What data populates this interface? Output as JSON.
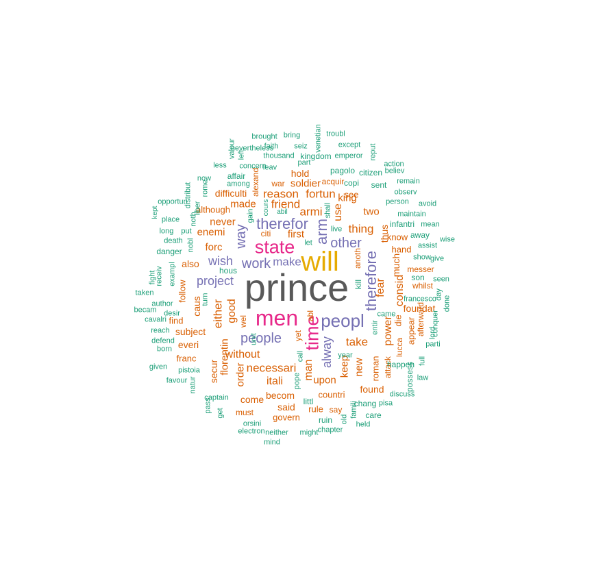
{
  "palette": {
    "grey": "#595959",
    "gold": "#E6AB02",
    "pink": "#E7298A",
    "purple": "#7570B3",
    "orange": "#D95F02",
    "teal": "#1B9E77"
  },
  "words": [
    {
      "text": "prince",
      "c": "grey"
    },
    {
      "text": "will",
      "c": "gold"
    },
    {
      "text": "men",
      "c": "pink"
    },
    {
      "text": "state",
      "c": "pink"
    },
    {
      "text": "time",
      "c": "pink"
    },
    {
      "text": "peopl",
      "c": "purple"
    },
    {
      "text": "arm",
      "c": "purple"
    },
    {
      "text": "therefor",
      "c": "purple"
    },
    {
      "text": "therefore",
      "c": "purple"
    },
    {
      "text": "other",
      "c": "purple"
    },
    {
      "text": "work",
      "c": "purple"
    },
    {
      "text": "way",
      "c": "purple"
    },
    {
      "text": "wish",
      "c": "purple"
    },
    {
      "text": "project",
      "c": "purple"
    },
    {
      "text": "people",
      "c": "purple"
    },
    {
      "text": "make",
      "c": "purple"
    },
    {
      "text": "alway",
      "c": "purple"
    },
    {
      "text": "fear",
      "c": "orange"
    },
    {
      "text": "man",
      "c": "orange"
    },
    {
      "text": "good",
      "c": "orange"
    },
    {
      "text": "either",
      "c": "orange"
    },
    {
      "text": "florentin",
      "c": "orange"
    },
    {
      "text": "necessari",
      "c": "orange"
    },
    {
      "text": "without",
      "c": "orange"
    },
    {
      "text": "take",
      "c": "orange"
    },
    {
      "text": "power",
      "c": "orange"
    },
    {
      "text": "consid",
      "c": "orange"
    },
    {
      "text": "thing",
      "c": "orange"
    },
    {
      "text": "much",
      "c": "orange"
    },
    {
      "text": "thus",
      "c": "orange"
    },
    {
      "text": "reason",
      "c": "orange"
    },
    {
      "text": "fortun",
      "c": "orange"
    },
    {
      "text": "friend",
      "c": "orange"
    },
    {
      "text": "armi",
      "c": "orange"
    },
    {
      "text": "first",
      "c": "orange"
    },
    {
      "text": "forc",
      "c": "orange"
    },
    {
      "text": "made",
      "c": "orange"
    },
    {
      "text": "never",
      "c": "orange"
    },
    {
      "text": "enemi",
      "c": "orange"
    },
    {
      "text": "also",
      "c": "orange"
    },
    {
      "text": "itali",
      "c": "orange"
    },
    {
      "text": "keep",
      "c": "orange"
    },
    {
      "text": "new",
      "c": "orange"
    },
    {
      "text": "order",
      "c": "orange"
    },
    {
      "text": "upon",
      "c": "orange"
    },
    {
      "text": "use",
      "c": "orange"
    },
    {
      "text": "king",
      "c": "orange"
    },
    {
      "text": "two",
      "c": "orange"
    },
    {
      "text": "soldier",
      "c": "orange"
    },
    {
      "text": "hold",
      "c": "orange"
    },
    {
      "text": "difficulti",
      "c": "orange"
    },
    {
      "text": "alexand",
      "c": "orange"
    },
    {
      "text": "caus",
      "c": "orange"
    },
    {
      "text": "follow",
      "c": "orange"
    },
    {
      "text": "subject",
      "c": "orange"
    },
    {
      "text": "everi",
      "c": "orange"
    },
    {
      "text": "secur",
      "c": "orange"
    },
    {
      "text": "becom",
      "c": "orange"
    },
    {
      "text": "said",
      "c": "orange"
    },
    {
      "text": "come",
      "c": "orange"
    },
    {
      "text": "countri",
      "c": "orange"
    },
    {
      "text": "found",
      "c": "orange"
    },
    {
      "text": "appear",
      "c": "orange"
    },
    {
      "text": "foundat",
      "c": "orange"
    },
    {
      "text": "hand",
      "c": "orange"
    },
    {
      "text": "know",
      "c": "orange"
    },
    {
      "text": "find",
      "c": "orange"
    },
    {
      "text": "franc",
      "c": "orange"
    },
    {
      "text": "although",
      "c": "orange"
    },
    {
      "text": "anoth",
      "c": "orange"
    },
    {
      "text": "wel",
      "c": "orange"
    },
    {
      "text": "abl",
      "c": "orange"
    },
    {
      "text": "yet",
      "c": "orange"
    },
    {
      "text": "citi",
      "c": "orange"
    },
    {
      "text": "war",
      "c": "orange"
    },
    {
      "text": "roman",
      "c": "orange"
    },
    {
      "text": "attack",
      "c": "orange"
    },
    {
      "text": "lucca",
      "c": "orange"
    },
    {
      "text": "die",
      "c": "orange"
    },
    {
      "text": "see",
      "c": "orange"
    },
    {
      "text": "acquir",
      "c": "orange"
    },
    {
      "text": "rule",
      "c": "orange"
    },
    {
      "text": "say",
      "c": "orange"
    },
    {
      "text": "must",
      "c": "orange"
    },
    {
      "text": "govern",
      "c": "orange"
    },
    {
      "text": "messer",
      "c": "orange"
    },
    {
      "text": "afterward",
      "c": "orange"
    },
    {
      "text": "whilst",
      "c": "orange"
    },
    {
      "text": "pope",
      "c": "teal"
    },
    {
      "text": "littl",
      "c": "teal"
    },
    {
      "text": "ruin",
      "c": "teal"
    },
    {
      "text": "might",
      "c": "teal"
    },
    {
      "text": "chapter",
      "c": "teal"
    },
    {
      "text": "old",
      "c": "teal"
    },
    {
      "text": "held",
      "c": "teal"
    },
    {
      "text": "care",
      "c": "teal"
    },
    {
      "text": "chang",
      "c": "teal"
    },
    {
      "text": "pisa",
      "c": "teal"
    },
    {
      "text": "famili",
      "c": "teal"
    },
    {
      "text": "discuss",
      "c": "teal"
    },
    {
      "text": "law",
      "c": "teal"
    },
    {
      "text": "parti",
      "c": "teal"
    },
    {
      "text": "lord",
      "c": "teal"
    },
    {
      "text": "full",
      "c": "teal"
    },
    {
      "text": "conquer",
      "c": "teal"
    },
    {
      "text": "possess",
      "c": "teal"
    },
    {
      "text": "happen",
      "c": "teal"
    },
    {
      "text": "came",
      "c": "teal"
    },
    {
      "text": "entir",
      "c": "teal"
    },
    {
      "text": "year",
      "c": "teal"
    },
    {
      "text": "call",
      "c": "teal"
    },
    {
      "text": "unit",
      "c": "teal"
    },
    {
      "text": "kill",
      "c": "teal"
    },
    {
      "text": "hous",
      "c": "teal"
    },
    {
      "text": "turn",
      "c": "teal"
    },
    {
      "text": "desir",
      "c": "teal"
    },
    {
      "text": "becam",
      "c": "teal"
    },
    {
      "text": "cavalri",
      "c": "teal"
    },
    {
      "text": "reach",
      "c": "teal"
    },
    {
      "text": "defend",
      "c": "teal"
    },
    {
      "text": "born",
      "c": "teal"
    },
    {
      "text": "given",
      "c": "teal"
    },
    {
      "text": "pistoia",
      "c": "teal"
    },
    {
      "text": "favour",
      "c": "teal"
    },
    {
      "text": "natur",
      "c": "teal"
    },
    {
      "text": "pass",
      "c": "teal"
    },
    {
      "text": "get",
      "c": "teal"
    },
    {
      "text": "captain",
      "c": "teal"
    },
    {
      "text": "orsini",
      "c": "teal"
    },
    {
      "text": "electron",
      "c": "teal"
    },
    {
      "text": "neither",
      "c": "teal"
    },
    {
      "text": "mind",
      "c": "teal"
    },
    {
      "text": "author",
      "c": "teal"
    },
    {
      "text": "taken",
      "c": "teal"
    },
    {
      "text": "fight",
      "c": "teal"
    },
    {
      "text": "receiv",
      "c": "teal"
    },
    {
      "text": "exampl",
      "c": "teal"
    },
    {
      "text": "danger",
      "c": "teal"
    },
    {
      "text": "death",
      "c": "teal"
    },
    {
      "text": "nobl",
      "c": "teal"
    },
    {
      "text": "long",
      "c": "teal"
    },
    {
      "text": "put",
      "c": "teal"
    },
    {
      "text": "place",
      "c": "teal"
    },
    {
      "text": "noth",
      "c": "teal"
    },
    {
      "text": "liber",
      "c": "teal"
    },
    {
      "text": "opportun",
      "c": "teal"
    },
    {
      "text": "kept",
      "c": "teal"
    },
    {
      "text": "distribut",
      "c": "teal"
    },
    {
      "text": "rome",
      "c": "teal"
    },
    {
      "text": "now",
      "c": "teal"
    },
    {
      "text": "less",
      "c": "teal"
    },
    {
      "text": "among",
      "c": "teal"
    },
    {
      "text": "affair",
      "c": "teal"
    },
    {
      "text": "concern",
      "c": "teal"
    },
    {
      "text": "leav",
      "c": "teal"
    },
    {
      "text": "part",
      "c": "teal"
    },
    {
      "text": "kingdom",
      "c": "teal"
    },
    {
      "text": "thousand",
      "c": "teal"
    },
    {
      "text": "nevertheless",
      "c": "teal"
    },
    {
      "text": "faith",
      "c": "teal"
    },
    {
      "text": "seiz",
      "c": "teal"
    },
    {
      "text": "valour",
      "c": "teal"
    },
    {
      "text": "brought",
      "c": "teal"
    },
    {
      "text": "bring",
      "c": "teal"
    },
    {
      "text": "venetian",
      "c": "teal"
    },
    {
      "text": "troubl",
      "c": "teal"
    },
    {
      "text": "except",
      "c": "teal"
    },
    {
      "text": "emperor",
      "c": "teal"
    },
    {
      "text": "reput",
      "c": "teal"
    },
    {
      "text": "pagolo",
      "c": "teal"
    },
    {
      "text": "citizen",
      "c": "teal"
    },
    {
      "text": "action",
      "c": "teal"
    },
    {
      "text": "believ",
      "c": "teal"
    },
    {
      "text": "copi",
      "c": "teal"
    },
    {
      "text": "sent",
      "c": "teal"
    },
    {
      "text": "remain",
      "c": "teal"
    },
    {
      "text": "observ",
      "c": "teal"
    },
    {
      "text": "person",
      "c": "teal"
    },
    {
      "text": "avoid",
      "c": "teal"
    },
    {
      "text": "maintain",
      "c": "teal"
    },
    {
      "text": "infantri",
      "c": "teal"
    },
    {
      "text": "mean",
      "c": "teal"
    },
    {
      "text": "wise",
      "c": "teal"
    },
    {
      "text": "away",
      "c": "teal"
    },
    {
      "text": "assist",
      "c": "teal"
    },
    {
      "text": "show",
      "c": "teal"
    },
    {
      "text": "give",
      "c": "teal"
    },
    {
      "text": "son",
      "c": "teal"
    },
    {
      "text": "seen",
      "c": "teal"
    },
    {
      "text": "day",
      "c": "teal"
    },
    {
      "text": "done",
      "c": "teal"
    },
    {
      "text": "francesco",
      "c": "teal"
    },
    {
      "text": "shall",
      "c": "teal"
    },
    {
      "text": "live",
      "c": "teal"
    },
    {
      "text": "let",
      "c": "teal"
    },
    {
      "text": "abil",
      "c": "teal"
    },
    {
      "text": "cours",
      "c": "teal"
    },
    {
      "text": "gain",
      "c": "teal"
    },
    {
      "text": "left",
      "c": "teal"
    },
    {
      "text": "river",
      "c": "teal"
    }
  ]
}
